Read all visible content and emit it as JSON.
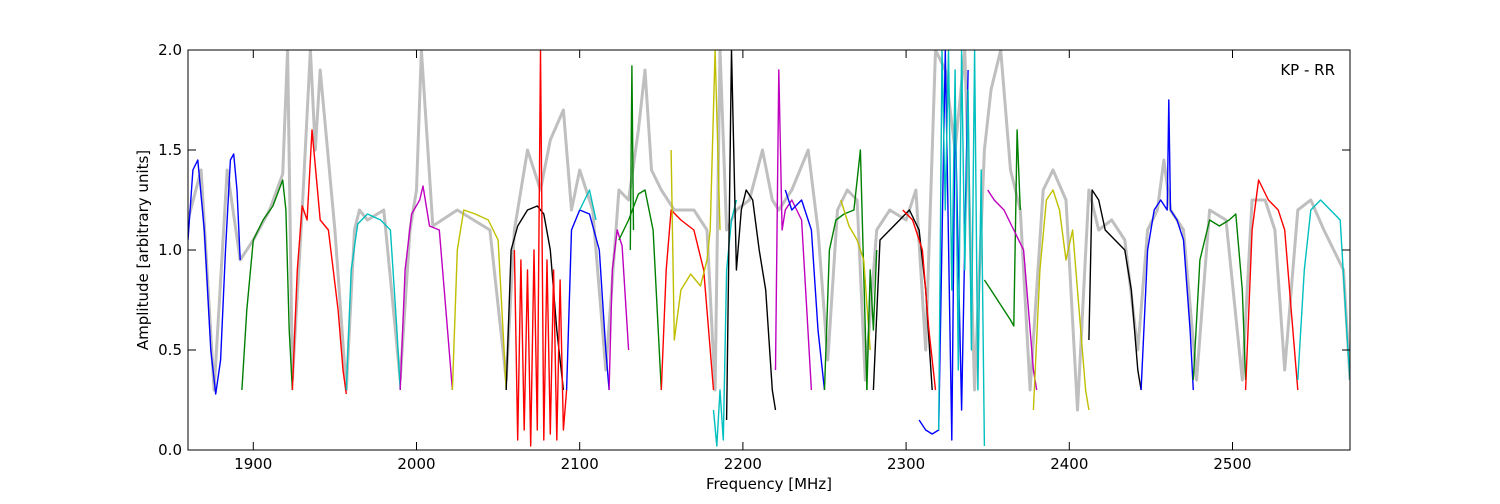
{
  "chart_data": {
    "type": "line",
    "title": "",
    "annotation": "KP - RR",
    "xlabel": "Frequency [MHz]",
    "ylabel": "Amplitude [arbitrary units]",
    "xlim": [
      1860,
      2572
    ],
    "ylim": [
      0.0,
      2.0
    ],
    "x_ticks": [
      1900,
      2000,
      2100,
      2200,
      2300,
      2400,
      2500
    ],
    "y_ticks": [
      0.0,
      0.5,
      1.0,
      1.5,
      2.0
    ],
    "x_tick_labels": [
      "1900",
      "2000",
      "2100",
      "2200",
      "2300",
      "2400",
      "2500"
    ],
    "y_tick_labels": [
      "0.0",
      "0.5",
      "1.0",
      "1.5",
      "2.0"
    ],
    "grid": false,
    "legend": "none",
    "background_series": {
      "color": "#bfbfbf",
      "x": [
        1860,
        1868,
        1876,
        1884,
        1892,
        1900,
        1910,
        1918,
        1921,
        1924,
        1930,
        1935,
        1938,
        1941,
        1950,
        1957,
        1962,
        1965,
        1970,
        1980,
        1990,
        1996,
        2000,
        2003,
        2010,
        2025,
        2045,
        2055,
        2060,
        2068,
        2076,
        2082,
        2090,
        2095,
        2100,
        2108,
        2116,
        2124,
        2130,
        2136,
        2140,
        2144,
        2150,
        2158,
        2170,
        2178,
        2183,
        2186,
        2190,
        2196,
        2204,
        2212,
        2218,
        2222,
        2230,
        2240,
        2246,
        2252,
        2258,
        2264,
        2270,
        2275,
        2282,
        2290,
        2300,
        2306,
        2312,
        2318,
        2324,
        2330,
        2336,
        2342,
        2348,
        2352,
        2358,
        2364,
        2370,
        2376,
        2384,
        2390,
        2398,
        2405,
        2412,
        2418,
        2426,
        2434,
        2442,
        2448,
        2454,
        2458,
        2462,
        2470,
        2478,
        2486,
        2496,
        2506,
        2512,
        2520,
        2526,
        2532,
        2540,
        2548,
        2556,
        2562,
        2568,
        2572
      ],
      "y": [
        1.15,
        1.4,
        0.3,
        1.4,
        0.95,
        1.05,
        1.2,
        1.38,
        2.0,
        0.35,
        1.2,
        2.0,
        1.5,
        1.9,
        1.1,
        0.3,
        1.1,
        1.2,
        1.15,
        1.2,
        0.35,
        1.1,
        1.3,
        2.0,
        1.12,
        1.2,
        1.1,
        0.35,
        1.1,
        1.5,
        1.3,
        1.55,
        1.7,
        1.2,
        1.4,
        1.2,
        0.4,
        1.3,
        1.25,
        1.6,
        1.9,
        1.4,
        1.3,
        1.2,
        1.2,
        1.1,
        0.3,
        2.0,
        1.1,
        1.2,
        1.25,
        1.5,
        1.25,
        1.2,
        1.3,
        1.5,
        1.1,
        0.45,
        1.2,
        1.3,
        1.25,
        0.35,
        1.1,
        1.2,
        1.15,
        1.3,
        0.5,
        2.0,
        1.9,
        1.5,
        2.0,
        0.3,
        1.5,
        1.8,
        2.0,
        1.4,
        1.2,
        0.3,
        1.3,
        1.4,
        1.25,
        0.2,
        1.3,
        1.1,
        1.15,
        1.05,
        0.5,
        1.1,
        1.2,
        1.45,
        1.2,
        1.1,
        0.35,
        1.2,
        1.15,
        0.35,
        1.25,
        1.25,
        1.1,
        0.4,
        1.2,
        1.25,
        1.1,
        1.0,
        0.9,
        0.35
      ]
    },
    "series": [
      {
        "color": "#0000ff",
        "x": [
          1860,
          1863,
          1866,
          1870,
          1874,
          1877,
          1880,
          1883,
          1886,
          1888,
          1890,
          1892
        ],
        "y": [
          1.05,
          1.4,
          1.45,
          1.1,
          0.5,
          0.28,
          0.45,
          1.0,
          1.45,
          1.48,
          1.3,
          0.95
        ]
      },
      {
        "color": "#008000",
        "x": [
          1893,
          1896,
          1900,
          1906,
          1912,
          1918,
          1920,
          1922,
          1924
        ],
        "y": [
          0.3,
          0.7,
          1.05,
          1.15,
          1.22,
          1.35,
          1.2,
          0.6,
          0.3
        ]
      },
      {
        "color": "#ff0000",
        "x": [
          1924,
          1927,
          1930,
          1933,
          1936,
          1938,
          1941,
          1946,
          1952,
          1955,
          1957
        ],
        "y": [
          0.3,
          0.9,
          1.22,
          1.15,
          1.6,
          1.42,
          1.15,
          1.1,
          0.7,
          0.4,
          0.28
        ]
      },
      {
        "color": "#00bfbf",
        "x": [
          1957,
          1960,
          1964,
          1970,
          1978,
          1984,
          1988,
          1990
        ],
        "y": [
          0.3,
          0.9,
          1.13,
          1.18,
          1.15,
          1.1,
          0.6,
          0.3
        ]
      },
      {
        "color": "#bf00bf",
        "x": [
          1990,
          1993,
          1997,
          2002,
          2004,
          2008,
          2014,
          2018,
          2022
        ],
        "y": [
          0.3,
          0.9,
          1.18,
          1.25,
          1.32,
          1.12,
          1.1,
          0.7,
          0.3
        ]
      },
      {
        "color": "#bfbf00",
        "x": [
          2022,
          2025,
          2029,
          2036,
          2044,
          2050,
          2053,
          2055
        ],
        "y": [
          0.3,
          1.0,
          1.2,
          1.18,
          1.15,
          1.05,
          0.6,
          0.3
        ]
      },
      {
        "color": "#000000",
        "x": [
          2055,
          2058,
          2062,
          2068,
          2074,
          2078,
          2082,
          2086,
          2090
        ],
        "y": [
          0.3,
          1.0,
          1.12,
          1.2,
          1.22,
          1.18,
          1.0,
          0.6,
          0.3
        ]
      },
      {
        "color": "#ff0000",
        "x": [
          2060,
          2062,
          2064,
          2066,
          2068,
          2070,
          2072,
          2074,
          2076,
          2078,
          2080,
          2082,
          2084,
          2086,
          2088,
          2090,
          2092
        ],
        "y": [
          1.0,
          0.05,
          0.95,
          0.1,
          0.9,
          0.02,
          1.0,
          0.1,
          2.0,
          0.05,
          0.95,
          0.08,
          0.9,
          0.05,
          0.85,
          0.1,
          0.3
        ]
      },
      {
        "color": "#0000ff",
        "x": [
          2092,
          2095,
          2100,
          2106,
          2112,
          2116,
          2118
        ],
        "y": [
          0.3,
          1.1,
          1.2,
          1.18,
          1.0,
          0.5,
          0.3
        ]
      },
      {
        "color": "#00bfbf",
        "x": [
          2100,
          2106,
          2110
        ],
        "y": [
          1.2,
          1.3,
          1.15
        ]
      },
      {
        "color": "#bf00bf",
        "x": [
          2118,
          2120,
          2123,
          2126,
          2130
        ],
        "y": [
          0.3,
          0.9,
          1.1,
          1.02,
          0.5
        ]
      },
      {
        "color": "#008000",
        "x": [
          2124,
          2130,
          2136,
          2140,
          2145,
          2150
        ],
        "y": [
          1.05,
          1.15,
          1.28,
          1.3,
          1.1,
          0.3
        ]
      },
      {
        "color": "#008000",
        "x": [
          2131,
          2132,
          2133
        ],
        "y": [
          1.0,
          1.92,
          1.1
        ]
      },
      {
        "color": "#ff0000",
        "x": [
          2150,
          2153,
          2156,
          2162,
          2170,
          2176,
          2182
        ],
        "y": [
          0.3,
          0.9,
          1.2,
          1.15,
          1.1,
          0.9,
          0.3
        ]
      },
      {
        "color": "#bfbf00",
        "x": [
          2156,
          2158,
          2162,
          2168,
          2174,
          2178,
          2180,
          2183,
          2186
        ],
        "y": [
          1.5,
          0.55,
          0.8,
          0.88,
          0.82,
          0.95,
          1.1,
          2.0,
          1.1
        ]
      },
      {
        "color": "#00bfbf",
        "x": [
          2182,
          2184,
          2186,
          2188,
          2190,
          2193,
          2196
        ],
        "y": [
          0.2,
          0.02,
          0.3,
          0.05,
          0.9,
          1.15,
          1.25
        ]
      },
      {
        "color": "#000000",
        "x": [
          2190,
          2193,
          2196,
          2199,
          2202,
          2206,
          2210,
          2214,
          2218,
          2220
        ],
        "y": [
          0.15,
          2.0,
          0.9,
          1.2,
          1.3,
          1.25,
          1.0,
          0.8,
          0.3,
          0.2
        ]
      },
      {
        "color": "#bf00bf",
        "x": [
          2220,
          2222,
          2224,
          2226,
          2230,
          2236,
          2242
        ],
        "y": [
          0.4,
          1.9,
          1.1,
          1.2,
          1.25,
          1.15,
          0.3
        ]
      },
      {
        "color": "#0000ff",
        "x": [
          2226,
          2230,
          2236,
          2242,
          2246,
          2250
        ],
        "y": [
          1.3,
          1.2,
          1.25,
          1.1,
          0.6,
          0.3
        ]
      },
      {
        "color": "#008000",
        "x": [
          2250,
          2253,
          2257,
          2262,
          2268,
          2272,
          2276
        ],
        "y": [
          0.3,
          1.0,
          1.15,
          1.18,
          1.2,
          1.5,
          0.3
        ]
      },
      {
        "color": "#bfbf00",
        "x": [
          2260,
          2265,
          2270,
          2274,
          2278
        ],
        "y": [
          1.25,
          1.12,
          1.05,
          0.95,
          0.5
        ]
      },
      {
        "color": "#008000",
        "x": [
          2276,
          2278,
          2280,
          2282
        ],
        "y": [
          0.3,
          0.9,
          0.6,
          1.0
        ]
      },
      {
        "color": "#000000",
        "x": [
          2280,
          2284,
          2290,
          2296,
          2302,
          2308,
          2312,
          2316
        ],
        "y": [
          0.3,
          1.05,
          1.1,
          1.15,
          1.2,
          1.1,
          0.8,
          0.3
        ]
      },
      {
        "color": "#ff0000",
        "x": [
          2298,
          2304,
          2310,
          2314,
          2318
        ],
        "y": [
          1.2,
          1.15,
          1.0,
          0.6,
          0.3
        ]
      },
      {
        "color": "#0000ff",
        "x": [
          2308,
          2312,
          2316,
          2320,
          2324,
          2328,
          2330,
          2334,
          2338
        ],
        "y": [
          0.15,
          0.1,
          0.08,
          0.1,
          2.0,
          0.05,
          1.7,
          0.2,
          1.9
        ]
      },
      {
        "color": "#00bfbf",
        "x": [
          2320,
          2322,
          2324,
          2326,
          2328,
          2330,
          2332,
          2334,
          2336,
          2338,
          2340,
          2342,
          2344,
          2346,
          2348
        ],
        "y": [
          0.1,
          2.0,
          1.2,
          2.0,
          0.8,
          1.9,
          0.4,
          2.0,
          0.9,
          1.8,
          0.5,
          2.0,
          0.3,
          1.4,
          0.02
        ]
      },
      {
        "color": "#008000",
        "x": [
          2348,
          2352,
          2356,
          2360,
          2364,
          2366,
          2368,
          2370
        ],
        "y": [
          0.85,
          0.8,
          0.75,
          0.7,
          0.65,
          0.62,
          1.6,
          1.2
        ]
      },
      {
        "color": "#bf00bf",
        "x": [
          2350,
          2354,
          2360,
          2366,
          2372,
          2378,
          2380
        ],
        "y": [
          1.3,
          1.25,
          1.2,
          1.1,
          1.0,
          0.4,
          0.3
        ]
      },
      {
        "color": "#bfbf00",
        "x": [
          2378,
          2382,
          2386,
          2390,
          2394,
          2398,
          2402,
          2406,
          2410,
          2412
        ],
        "y": [
          0.2,
          0.9,
          1.25,
          1.3,
          1.2,
          0.95,
          1.1,
          0.7,
          0.3,
          0.2
        ]
      },
      {
        "color": "#000000",
        "x": [
          2412,
          2414,
          2418,
          2422,
          2428,
          2434,
          2438,
          2442,
          2444
        ],
        "y": [
          0.55,
          1.3,
          1.25,
          1.1,
          1.05,
          1.0,
          0.8,
          0.4,
          0.3
        ]
      },
      {
        "color": "#0000ff",
        "x": [
          2444,
          2448,
          2452,
          2456,
          2460,
          2461,
          2462,
          2466,
          2470,
          2474,
          2476
        ],
        "y": [
          0.3,
          1.0,
          1.2,
          1.25,
          1.2,
          1.75,
          1.2,
          1.15,
          1.05,
          0.6,
          0.3
        ]
      },
      {
        "color": "#008000",
        "x": [
          2476,
          2480,
          2486,
          2492,
          2498,
          2502,
          2506,
          2508
        ],
        "y": [
          0.35,
          0.95,
          1.15,
          1.12,
          1.15,
          1.18,
          0.8,
          0.35
        ]
      },
      {
        "color": "#ff0000",
        "x": [
          2508,
          2512,
          2516,
          2522,
          2528,
          2532,
          2536,
          2540
        ],
        "y": [
          0.3,
          1.1,
          1.35,
          1.25,
          1.2,
          1.1,
          0.7,
          0.3
        ]
      },
      {
        "color": "#00bfbf",
        "x": [
          2540,
          2544,
          2548,
          2554,
          2560,
          2566,
          2570,
          2572
        ],
        "y": [
          0.35,
          0.9,
          1.2,
          1.25,
          1.2,
          1.15,
          0.6,
          0.35
        ]
      }
    ]
  }
}
